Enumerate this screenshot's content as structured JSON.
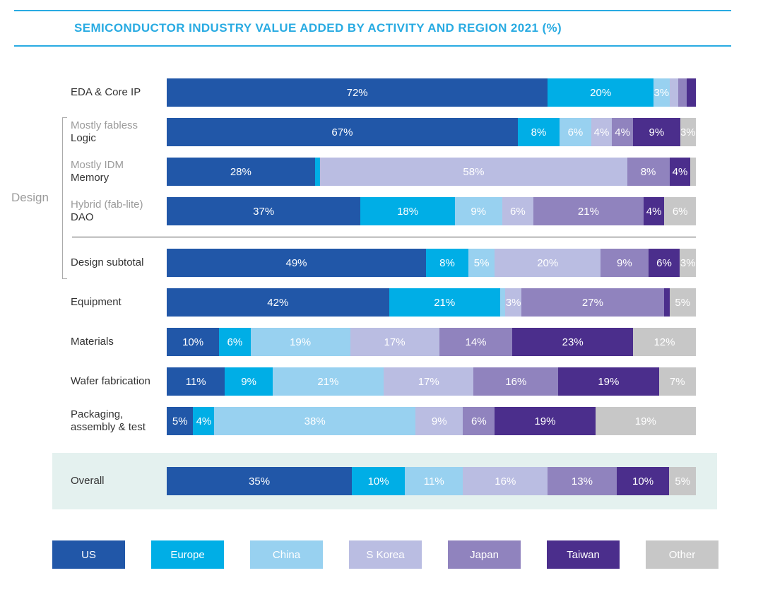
{
  "header": {
    "title": "SEMICONDUCTOR INDUSTRY VALUE ADDED BY ACTIVITY AND REGION 2021 (%)"
  },
  "design_group": {
    "label": "Design"
  },
  "colors": {
    "accent": "#29ABE2",
    "highlight_band": "#E4F1EF",
    "divider_line": "#4D4D4D",
    "bracket_line": "#ABABAB",
    "label_dark": "#333333",
    "label_gray": "#9B9B9B"
  },
  "legend": {
    "items": [
      {
        "label": "US",
        "color": "#2157A8"
      },
      {
        "label": "Europe",
        "color": "#00AEE6"
      },
      {
        "label": "China",
        "color": "#98D1F0"
      },
      {
        "label": "S Korea",
        "color": "#BABDE2"
      },
      {
        "label": "Japan",
        "color": "#9083BE"
      },
      {
        "label": "Taiwan",
        "color": "#4B2E8C"
      },
      {
        "label": "Other",
        "color": "#C7C7C7"
      }
    ]
  },
  "chart_data": {
    "type": "bar",
    "variant": "horizontal-stacked-100pct",
    "title": "SEMICONDUCTOR INDUSTRY VALUE ADDED BY ACTIVITY AND REGION 2021 (%)",
    "unit": "%",
    "legend_position": "bottom",
    "series_names": [
      "US",
      "Europe",
      "China",
      "S Korea",
      "Japan",
      "Taiwan",
      "Other"
    ],
    "series_colors": [
      "#2157A8",
      "#00AEE6",
      "#98D1F0",
      "#BABDE2",
      "#9083BE",
      "#4B2E8C",
      "#C7C7C7"
    ],
    "rows": [
      {
        "label": "EDA & Core IP",
        "sublabel": "",
        "values": [
          72,
          20,
          3,
          1.7,
          1.6,
          1.7,
          0
        ],
        "display_labels": [
          "72%",
          "20%",
          "3%",
          "",
          "",
          "",
          ""
        ]
      },
      {
        "label": "Logic",
        "sublabel": "Mostly fabless",
        "in_design_group": true,
        "values": [
          67,
          8,
          6,
          4,
          4,
          9,
          3
        ],
        "display_labels": [
          "67%",
          "8%",
          "6%",
          "4%",
          "4%",
          "9%",
          "3%"
        ]
      },
      {
        "label": "Memory",
        "sublabel": "Mostly IDM",
        "in_design_group": true,
        "values": [
          28,
          1,
          0,
          58,
          8,
          4,
          1
        ],
        "display_labels": [
          "28%",
          "",
          "",
          "58%",
          "8%",
          "4%",
          ""
        ]
      },
      {
        "label": "DAO",
        "sublabel": "Hybrid (fab-lite)",
        "in_design_group": true,
        "values": [
          37,
          18,
          9,
          6,
          21,
          4,
          6
        ],
        "display_labels": [
          "37%",
          "18%",
          "9%",
          "6%",
          "21%",
          "4%",
          "6%"
        ]
      },
      {
        "label": "Design subtotal",
        "sublabel": "",
        "in_design_group": true,
        "divider_before": true,
        "values": [
          49,
          8,
          5,
          20,
          9,
          6,
          3
        ],
        "display_labels": [
          "49%",
          "8%",
          "5%",
          "20%",
          "9%",
          "6%",
          "3%"
        ]
      },
      {
        "label": "Equipment",
        "sublabel": "",
        "values": [
          42,
          21,
          1,
          3,
          27,
          1,
          5
        ],
        "display_labels": [
          "42%",
          "21%",
          "",
          "3%",
          "27%",
          "",
          "5%"
        ]
      },
      {
        "label": "Materials",
        "sublabel": "",
        "values": [
          10,
          6,
          19,
          17,
          14,
          23,
          12
        ],
        "display_labels": [
          "10%",
          "6%",
          "19%",
          "17%",
          "14%",
          "23%",
          "12%"
        ]
      },
      {
        "label": "Wafer fabrication",
        "sublabel": "",
        "values": [
          11,
          9,
          21,
          17,
          16,
          19,
          7
        ],
        "display_labels": [
          "11%",
          "9%",
          "21%",
          "17%",
          "16%",
          "19%",
          "7%"
        ]
      },
      {
        "label": "Packaging, assembly & test",
        "sublabel": "",
        "values": [
          5,
          4,
          38,
          9,
          6,
          19,
          19
        ],
        "display_labels": [
          "5%",
          "4%",
          "38%",
          "9%",
          "6%",
          "19%",
          "19%"
        ]
      },
      {
        "label": "Overall",
        "sublabel": "",
        "highlight": true,
        "values": [
          35,
          10,
          11,
          16,
          13,
          10,
          5
        ],
        "display_labels": [
          "35%",
          "10%",
          "11%",
          "16%",
          "13%",
          "10%",
          "5%"
        ]
      }
    ]
  }
}
